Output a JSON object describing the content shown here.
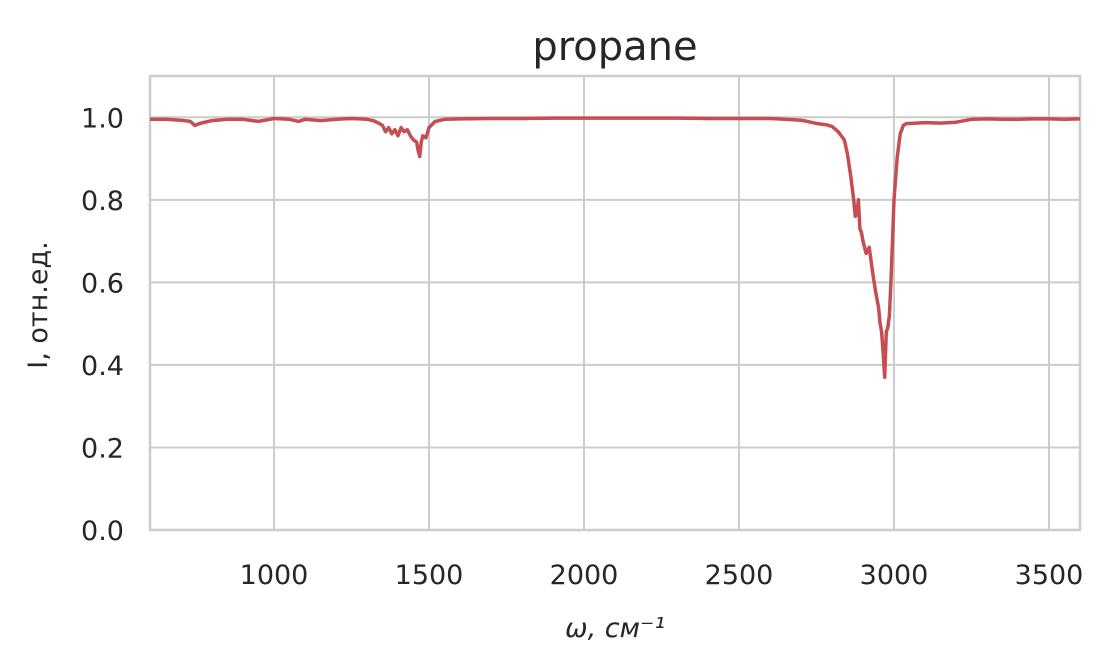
{
  "chart_data": {
    "type": "line",
    "title": "propane",
    "xlabel": "ω, см⁻¹",
    "ylabel": "I, отн.ед.",
    "xlim": [
      600,
      3600
    ],
    "ylim": [
      0,
      1.1
    ],
    "x_ticks": [
      1000,
      1500,
      2000,
      2500,
      3000,
      3500
    ],
    "y_ticks": [
      0.0,
      0.2,
      0.4,
      0.6,
      0.8,
      1.0
    ],
    "x_tick_labels": [
      "1000",
      "1500",
      "2000",
      "2500",
      "3000",
      "3500"
    ],
    "y_tick_labels": [
      "0.0",
      "0.2",
      "0.4",
      "0.6",
      "0.8",
      "1.0"
    ],
    "grid": true,
    "series": [
      {
        "color": "#c44e52",
        "x": [
          600,
          650,
          700,
          730,
          745,
          760,
          800,
          850,
          900,
          950,
          1000,
          1050,
          1080,
          1100,
          1150,
          1200,
          1250,
          1300,
          1320,
          1340,
          1350,
          1360,
          1370,
          1380,
          1390,
          1400,
          1410,
          1420,
          1430,
          1440,
          1450,
          1460,
          1465,
          1470,
          1475,
          1480,
          1490,
          1500,
          1520,
          1550,
          1600,
          1700,
          1800,
          1900,
          2000,
          2100,
          2200,
          2300,
          2400,
          2500,
          2600,
          2650,
          2700,
          2720,
          2750,
          2780,
          2800,
          2820,
          2840,
          2850,
          2860,
          2870,
          2875,
          2880,
          2885,
          2890,
          2895,
          2900,
          2910,
          2920,
          2930,
          2940,
          2950,
          2955,
          2960,
          2965,
          2970,
          2975,
          2980,
          2985,
          2990,
          2995,
          3000,
          3010,
          3020,
          3030,
          3040,
          3050,
          3100,
          3150,
          3200,
          3250,
          3300,
          3350,
          3400,
          3450,
          3500,
          3550,
          3600
        ],
        "y": [
          0.995,
          0.995,
          0.993,
          0.99,
          0.98,
          0.985,
          0.992,
          0.995,
          0.995,
          0.99,
          0.997,
          0.995,
          0.99,
          0.995,
          0.992,
          0.995,
          0.997,
          0.995,
          0.992,
          0.985,
          0.98,
          0.965,
          0.975,
          0.96,
          0.97,
          0.955,
          0.975,
          0.965,
          0.97,
          0.955,
          0.945,
          0.94,
          0.92,
          0.905,
          0.94,
          0.955,
          0.95,
          0.975,
          0.99,
          0.995,
          0.996,
          0.997,
          0.997,
          0.998,
          0.998,
          0.998,
          0.998,
          0.998,
          0.997,
          0.997,
          0.997,
          0.995,
          0.993,
          0.99,
          0.985,
          0.982,
          0.978,
          0.965,
          0.945,
          0.91,
          0.86,
          0.8,
          0.76,
          0.765,
          0.8,
          0.73,
          0.72,
          0.7,
          0.67,
          0.685,
          0.63,
          0.58,
          0.54,
          0.5,
          0.48,
          0.43,
          0.37,
          0.48,
          0.49,
          0.52,
          0.6,
          0.7,
          0.8,
          0.9,
          0.96,
          0.98,
          0.985,
          0.985,
          0.987,
          0.986,
          0.988,
          0.995,
          0.996,
          0.995,
          0.995,
          0.996,
          0.996,
          0.995,
          0.996
        ]
      }
    ]
  }
}
